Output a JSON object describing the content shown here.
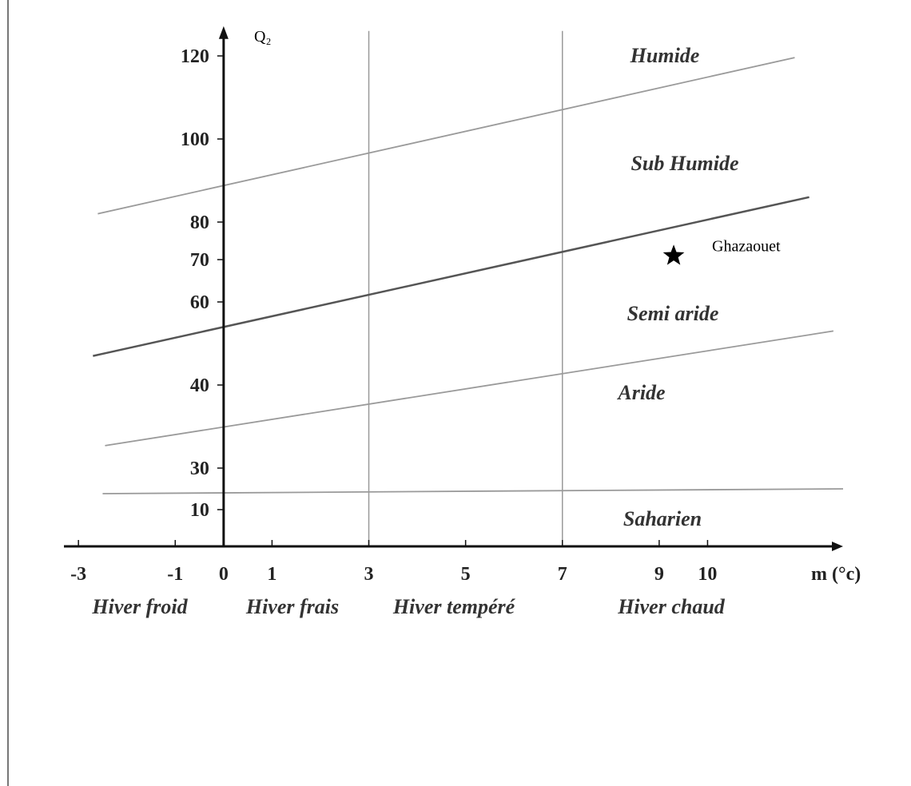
{
  "chart_data": {
    "type": "line",
    "y_label": "Q₂",
    "x_label": "m (°c)",
    "xlim": [
      -3.3,
      12.8
    ],
    "ylim": [
      0,
      126
    ],
    "xticks": [
      -3,
      -1,
      0,
      1,
      3,
      5,
      7,
      9,
      10
    ],
    "yticks": [
      10,
      30,
      40,
      60,
      70,
      80,
      100,
      120
    ],
    "vlines": [
      3,
      7
    ],
    "series": [
      {
        "color": "#9a9a9a",
        "x": [
          -2.6,
          11.8
        ],
        "values": [
          82,
          119.6
        ]
      },
      {
        "color": "#555555",
        "x": [
          -2.7,
          12.1
        ],
        "values": [
          47,
          86
        ]
      },
      {
        "color": "#9a9a9a",
        "x": [
          -2.45,
          12.6
        ],
        "values": [
          32.7,
          53
        ]
      },
      {
        "color": "#9a9a9a",
        "x": [
          -2.5,
          12.8
        ],
        "values": [
          17.7,
          20
        ]
      }
    ],
    "points": [
      {
        "label": "Ghazaouet",
        "x": 9.3,
        "y": 71,
        "color": "#000000"
      }
    ],
    "zones": [
      "Humide",
      "Sub Humide",
      "Semi aride",
      "Aride",
      "Saharien"
    ],
    "winters": [
      "Hiver froid",
      "Hiver frais",
      "Hiver tempéré",
      "Hiver chaud"
    ]
  }
}
